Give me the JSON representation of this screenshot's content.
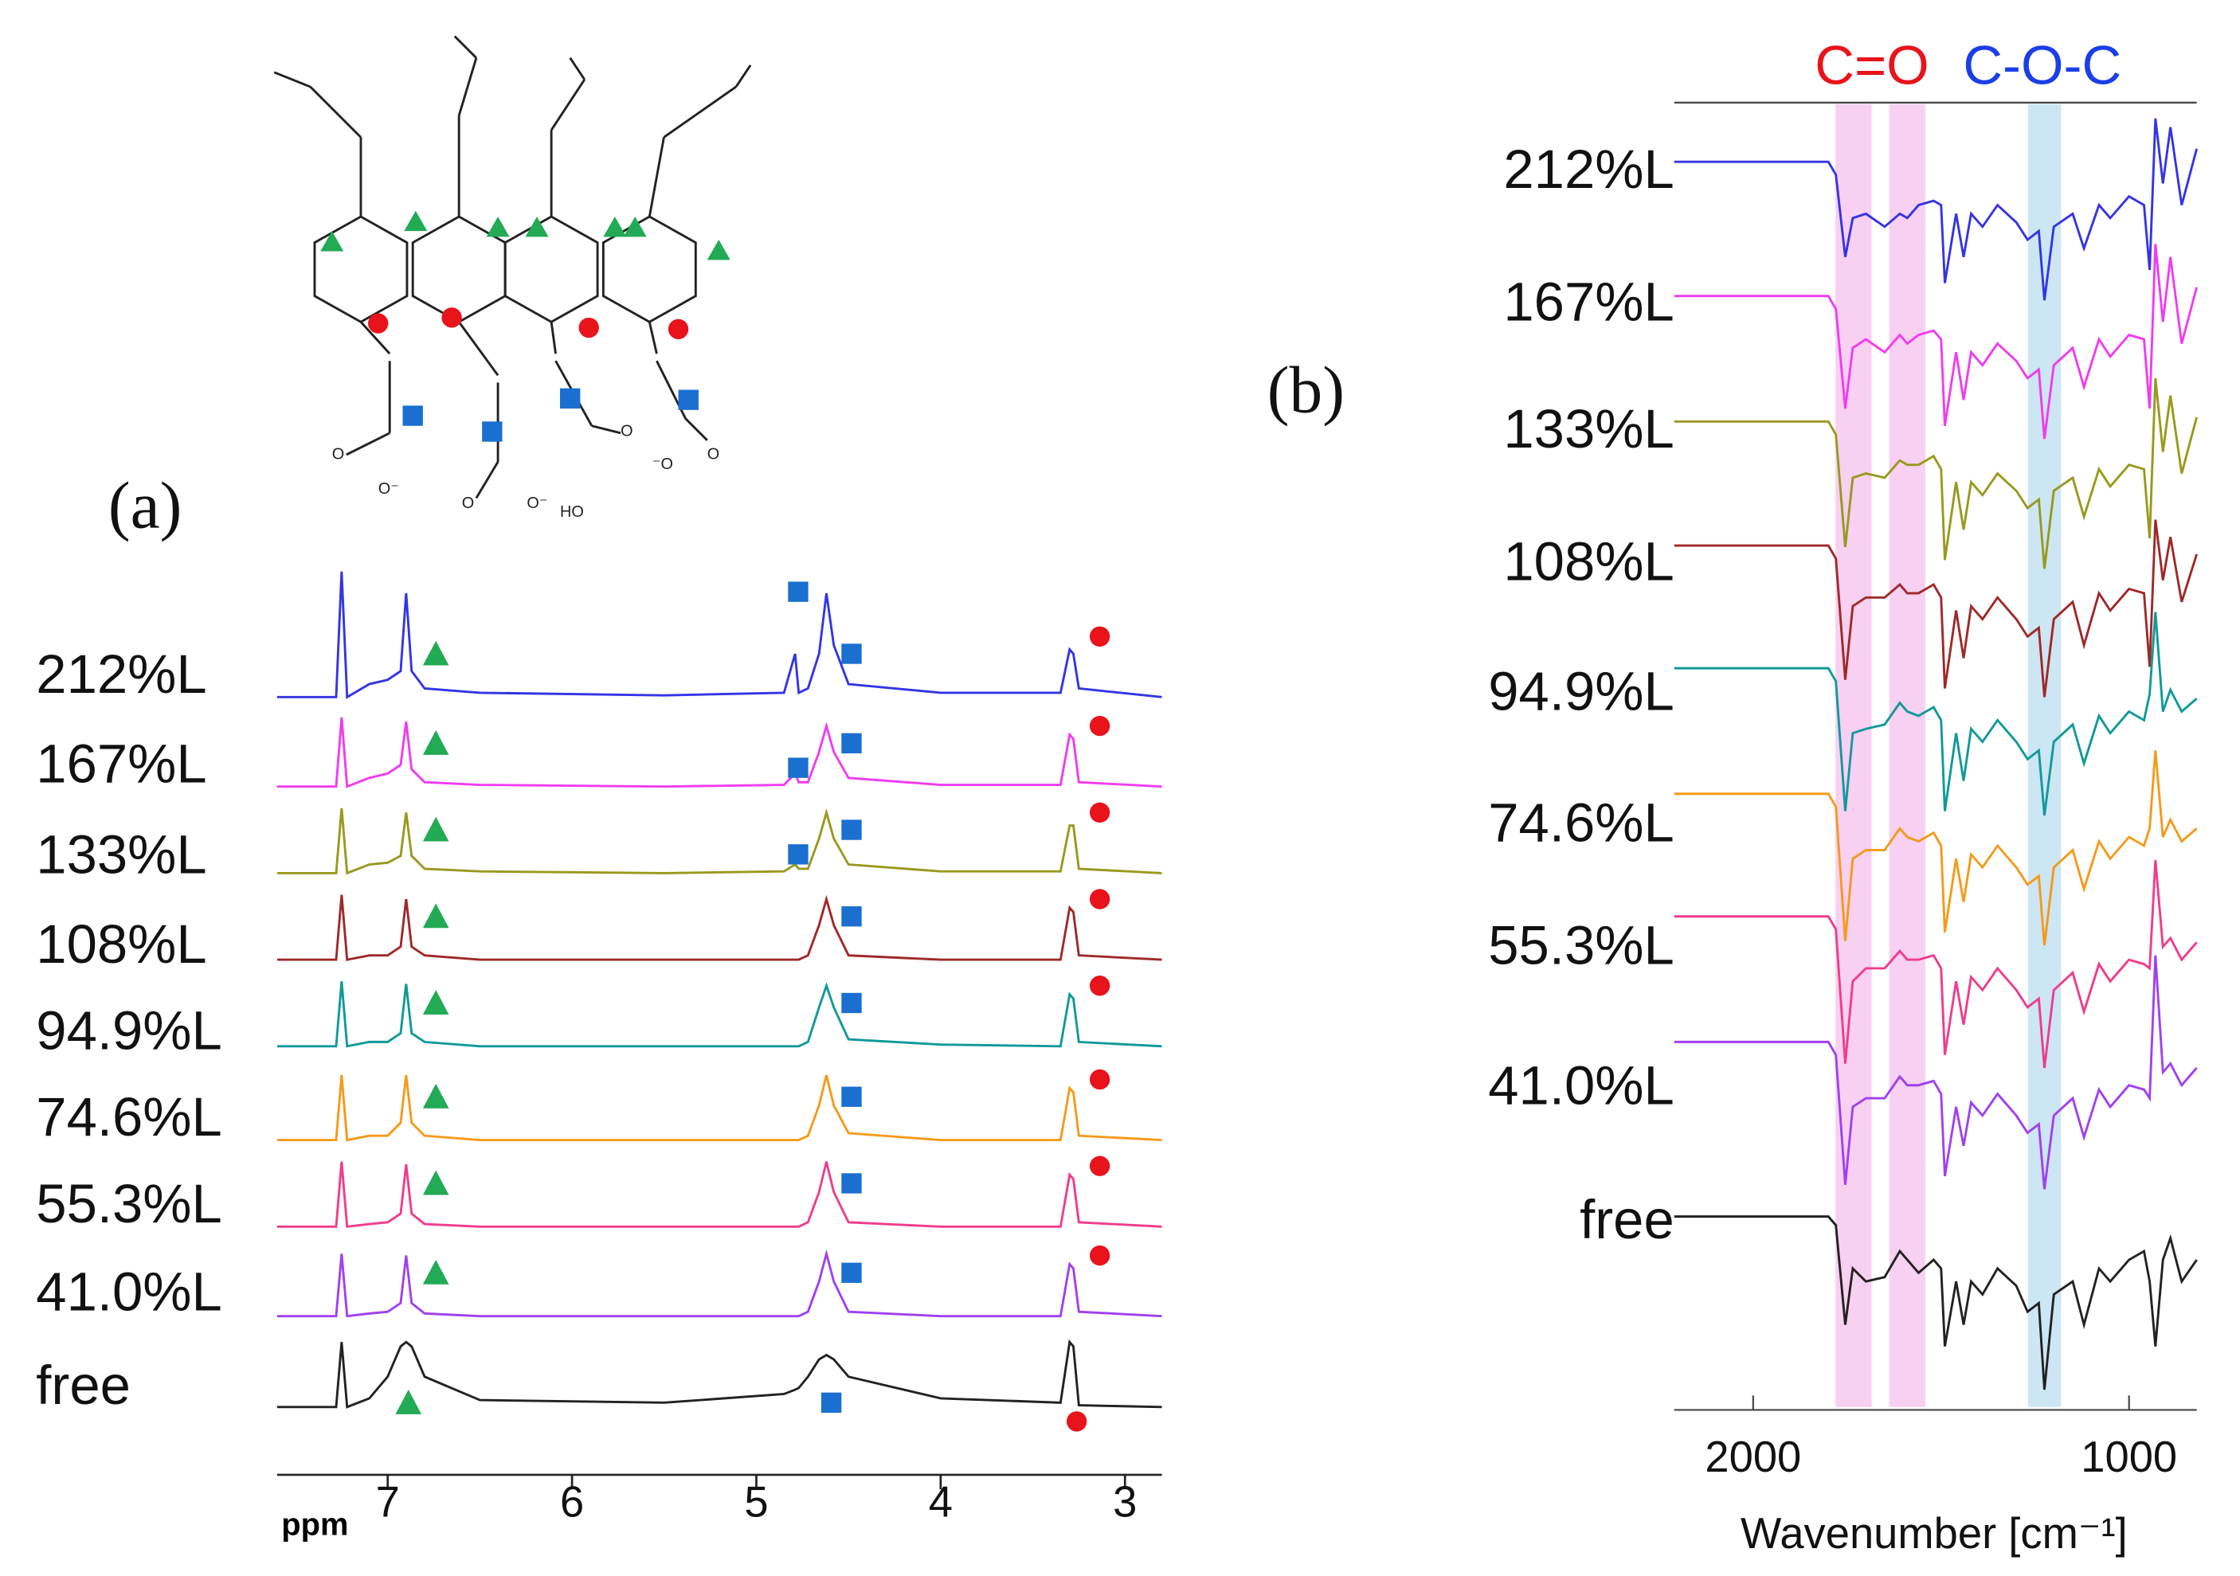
{
  "chart_data": [
    {
      "type": "line",
      "panel_label": "(a)",
      "xlabel": "ppm",
      "xlim": [
        7.6,
        2.8
      ],
      "xticks": [
        7,
        6,
        5,
        4,
        3
      ],
      "x": [
        7.6,
        7.28,
        7.25,
        7.22,
        7.1,
        7.0,
        6.93,
        6.9,
        6.87,
        6.8,
        6.5,
        5.5,
        4.85,
        4.79,
        4.77,
        4.72,
        4.66,
        4.62,
        4.58,
        4.5,
        4.0,
        3.35,
        3.3,
        3.28,
        3.25,
        2.8
      ],
      "series": [
        {
          "name": "212%L",
          "color": "#3434e6",
          "values": [
            0,
            0,
            1.45,
            0,
            0.15,
            0.2,
            0.3,
            1.2,
            0.3,
            0.1,
            0.05,
            0.02,
            0.05,
            0.5,
            0.05,
            0.1,
            0.5,
            1.2,
            0.6,
            0.15,
            0.05,
            0.05,
            0.55,
            0.5,
            0.1,
            0
          ]
        },
        {
          "name": "167%L",
          "color": "#f03cf0",
          "values": [
            0,
            0,
            0.8,
            0,
            0.1,
            0.15,
            0.25,
            0.75,
            0.2,
            0.05,
            0.02,
            0,
            0.02,
            0.15,
            0.05,
            0.05,
            0.4,
            0.7,
            0.4,
            0.1,
            0.02,
            0.02,
            0.6,
            0.55,
            0.05,
            0
          ]
        },
        {
          "name": "133%L",
          "color": "#99991e",
          "values": [
            0,
            0,
            0.75,
            0,
            0.1,
            0.12,
            0.2,
            0.7,
            0.2,
            0.05,
            0.02,
            0,
            0.02,
            0.1,
            0.05,
            0.05,
            0.4,
            0.7,
            0.4,
            0.1,
            0.02,
            0.02,
            0.55,
            0.55,
            0.05,
            0
          ]
        },
        {
          "name": "108%L",
          "color": "#a02828",
          "values": [
            0,
            0,
            0.75,
            0,
            0.05,
            0.05,
            0.15,
            0.7,
            0.15,
            0.05,
            0,
            0,
            0,
            0,
            0,
            0.05,
            0.4,
            0.7,
            0.4,
            0.05,
            0,
            0,
            0.6,
            0.55,
            0.05,
            0
          ]
        },
        {
          "name": "94.9%L",
          "color": "#10999a",
          "values": [
            0,
            0,
            0.75,
            0,
            0.05,
            0.05,
            0.15,
            0.72,
            0.15,
            0.05,
            0,
            0,
            0,
            0,
            0,
            0.05,
            0.45,
            0.7,
            0.45,
            0.08,
            0.02,
            0,
            0.6,
            0.55,
            0.05,
            0
          ]
        },
        {
          "name": "74.6%L",
          "color": "#f59a1a",
          "values": [
            0,
            0,
            0.75,
            0,
            0.05,
            0.05,
            0.2,
            0.75,
            0.2,
            0.05,
            0,
            0,
            0,
            0,
            0,
            0.05,
            0.4,
            0.75,
            0.4,
            0.08,
            0,
            0,
            0.6,
            0.55,
            0.05,
            0
          ]
        },
        {
          "name": "55.3%L",
          "color": "#f03c8c",
          "values": [
            0,
            0,
            0.75,
            0,
            0.03,
            0.05,
            0.15,
            0.72,
            0.15,
            0.03,
            0,
            0,
            0,
            0,
            0,
            0.05,
            0.4,
            0.75,
            0.4,
            0.05,
            0,
            0,
            0.6,
            0.55,
            0.05,
            0
          ]
        },
        {
          "name": "41.0%L",
          "color": "#a040f0",
          "values": [
            0,
            0,
            0.72,
            0,
            0.03,
            0.05,
            0.15,
            0.7,
            0.15,
            0.03,
            0,
            0,
            0,
            0,
            0,
            0.05,
            0.4,
            0.72,
            0.4,
            0.05,
            0,
            0,
            0.6,
            0.55,
            0.05,
            0
          ]
        },
        {
          "name": "free",
          "color": "#222222",
          "values": [
            0,
            0,
            0.75,
            0,
            0.1,
            0.35,
            0.7,
            0.75,
            0.7,
            0.35,
            0.08,
            0.05,
            0.15,
            0.2,
            0.22,
            0.35,
            0.55,
            0.6,
            0.55,
            0.35,
            0.1,
            0.05,
            0.75,
            0.7,
            0.02,
            0
          ]
        }
      ]
    },
    {
      "type": "line",
      "panel_label": "(b)",
      "xlabel": "Wavenumber [cm⁻¹]",
      "xlim": [
        2210,
        820
      ],
      "xticks": [
        2000,
        1000
      ],
      "highlights": [
        {
          "xrange": [
            1781,
            1685
          ],
          "color": "#f7c8ee"
        },
        {
          "xrange": [
            1638,
            1542
          ],
          "color": "#f7c8ee"
        },
        {
          "xrange": [
            1269,
            1181
          ],
          "color": "#c3e2f2"
        }
      ],
      "annotations": [
        {
          "text": "C=O",
          "color": "#e8131b"
        },
        {
          "text": "C-O-C",
          "color": "#1a3ee8"
        }
      ],
      "x": [
        2210,
        1800,
        1780,
        1755,
        1735,
        1700,
        1650,
        1610,
        1590,
        1560,
        1520,
        1500,
        1490,
        1460,
        1440,
        1420,
        1390,
        1350,
        1300,
        1270,
        1240,
        1225,
        1200,
        1150,
        1120,
        1080,
        1050,
        1000,
        960,
        945,
        930,
        910,
        890,
        860,
        820
      ],
      "series": [
        {
          "name": "212%L",
          "color": "#3434e6",
          "values": [
            0,
            0,
            -0.3,
            -2.2,
            -1.3,
            -1.2,
            -1.5,
            -1.2,
            -1.3,
            -1.0,
            -0.9,
            -1.0,
            -2.8,
            -1.2,
            -2.2,
            -1.2,
            -1.5,
            -1.0,
            -1.4,
            -1.8,
            -1.6,
            -3.2,
            -1.5,
            -1.2,
            -2.0,
            -1.0,
            -1.3,
            -0.8,
            -1.0,
            -2.5,
            1.0,
            -0.5,
            0.8,
            -1.0,
            0.3
          ]
        },
        {
          "name": "167%L",
          "color": "#f03cf0",
          "values": [
            0,
            0,
            -0.3,
            -2.6,
            -1.2,
            -1.0,
            -1.3,
            -0.9,
            -1.1,
            -0.9,
            -0.8,
            -1.0,
            -3.0,
            -1.3,
            -2.4,
            -1.3,
            -1.6,
            -1.1,
            -1.5,
            -1.9,
            -1.7,
            -3.3,
            -1.6,
            -1.2,
            -2.1,
            -1.0,
            -1.4,
            -0.9,
            -1.0,
            -2.6,
            1.2,
            -0.6,
            0.9,
            -1.1,
            0.2
          ]
        },
        {
          "name": "133%L",
          "color": "#99991e",
          "values": [
            0,
            0,
            -0.3,
            -2.9,
            -1.3,
            -1.2,
            -1.3,
            -0.9,
            -1.0,
            -1.0,
            -0.8,
            -1.1,
            -3.2,
            -1.4,
            -2.5,
            -1.4,
            -1.7,
            -1.2,
            -1.6,
            -2.0,
            -1.8,
            -3.4,
            -1.6,
            -1.3,
            -2.2,
            -1.1,
            -1.5,
            -1.0,
            -1.1,
            -2.7,
            1.0,
            -0.7,
            0.6,
            -1.2,
            0.1
          ]
        },
        {
          "name": "108%L",
          "color": "#a02828",
          "values": [
            0,
            0,
            -0.3,
            -3.1,
            -1.4,
            -1.2,
            -1.2,
            -0.9,
            -1.1,
            -1.1,
            -0.9,
            -1.2,
            -3.3,
            -1.5,
            -2.6,
            -1.4,
            -1.7,
            -1.2,
            -1.7,
            -2.1,
            -1.9,
            -3.5,
            -1.7,
            -1.3,
            -2.3,
            -1.1,
            -1.5,
            -1.0,
            -1.1,
            -2.8,
            0.6,
            -0.8,
            0.2,
            -1.3,
            -0.2
          ]
        },
        {
          "name": "94.9%L",
          "color": "#10999a",
          "values": [
            0,
            0,
            -0.3,
            -3.3,
            -1.5,
            -1.4,
            -1.3,
            -0.8,
            -1.0,
            -1.1,
            -0.9,
            -1.2,
            -3.3,
            -1.5,
            -2.6,
            -1.4,
            -1.7,
            -1.2,
            -1.7,
            -2.1,
            -1.9,
            -3.4,
            -1.7,
            -1.3,
            -2.2,
            -1.1,
            -1.5,
            -1.0,
            -1.2,
            -0.6,
            1.3,
            -1.0,
            -0.5,
            -1.0,
            -0.7
          ]
        },
        {
          "name": "74.6%L",
          "color": "#f59a1a",
          "values": [
            0,
            0,
            -0.3,
            -3.4,
            -1.5,
            -1.3,
            -1.3,
            -0.8,
            -1.0,
            -1.1,
            -0.9,
            -1.2,
            -3.2,
            -1.5,
            -2.5,
            -1.4,
            -1.7,
            -1.2,
            -1.7,
            -2.1,
            -1.9,
            -3.5,
            -1.7,
            -1.3,
            -2.2,
            -1.1,
            -1.5,
            -1.0,
            -1.2,
            -0.8,
            1.0,
            -1.0,
            -0.6,
            -1.1,
            -0.8
          ]
        },
        {
          "name": "55.3%L",
          "color": "#f03c8c",
          "values": [
            0,
            0,
            -0.3,
            -3.4,
            -1.5,
            -1.2,
            -1.2,
            -0.8,
            -1.0,
            -1.0,
            -0.9,
            -1.2,
            -3.2,
            -1.5,
            -2.5,
            -1.4,
            -1.7,
            -1.2,
            -1.7,
            -2.1,
            -1.9,
            -3.5,
            -1.7,
            -1.3,
            -2.2,
            -1.1,
            -1.5,
            -1.0,
            -1.1,
            -1.2,
            1.3,
            -0.7,
            -0.5,
            -1.0,
            -0.6
          ]
        },
        {
          "name": "41.0%L",
          "color": "#a040f0",
          "values": [
            0,
            0,
            -0.3,
            -3.3,
            -1.5,
            -1.3,
            -1.3,
            -0.8,
            -1.0,
            -1.0,
            -0.9,
            -1.2,
            -3.1,
            -1.5,
            -2.4,
            -1.4,
            -1.7,
            -1.2,
            -1.7,
            -2.1,
            -1.9,
            -3.4,
            -1.7,
            -1.3,
            -2.2,
            -1.1,
            -1.5,
            -1.0,
            -1.1,
            -1.3,
            2.0,
            -0.7,
            -0.5,
            -1.0,
            -0.6
          ]
        },
        {
          "name": "free",
          "color": "#222222",
          "values": [
            0,
            0,
            -0.2,
            -2.5,
            -1.2,
            -1.5,
            -1.4,
            -0.8,
            -1.0,
            -1.3,
            -1.0,
            -1.2,
            -3.0,
            -1.5,
            -2.5,
            -1.5,
            -1.8,
            -1.2,
            -1.6,
            -2.2,
            -2.0,
            -4.0,
            -1.8,
            -1.5,
            -2.5,
            -1.2,
            -1.5,
            -1.0,
            -0.8,
            -1.5,
            -3.0,
            -1.0,
            -0.5,
            -1.5,
            -1.0
          ]
        }
      ]
    }
  ]
}
